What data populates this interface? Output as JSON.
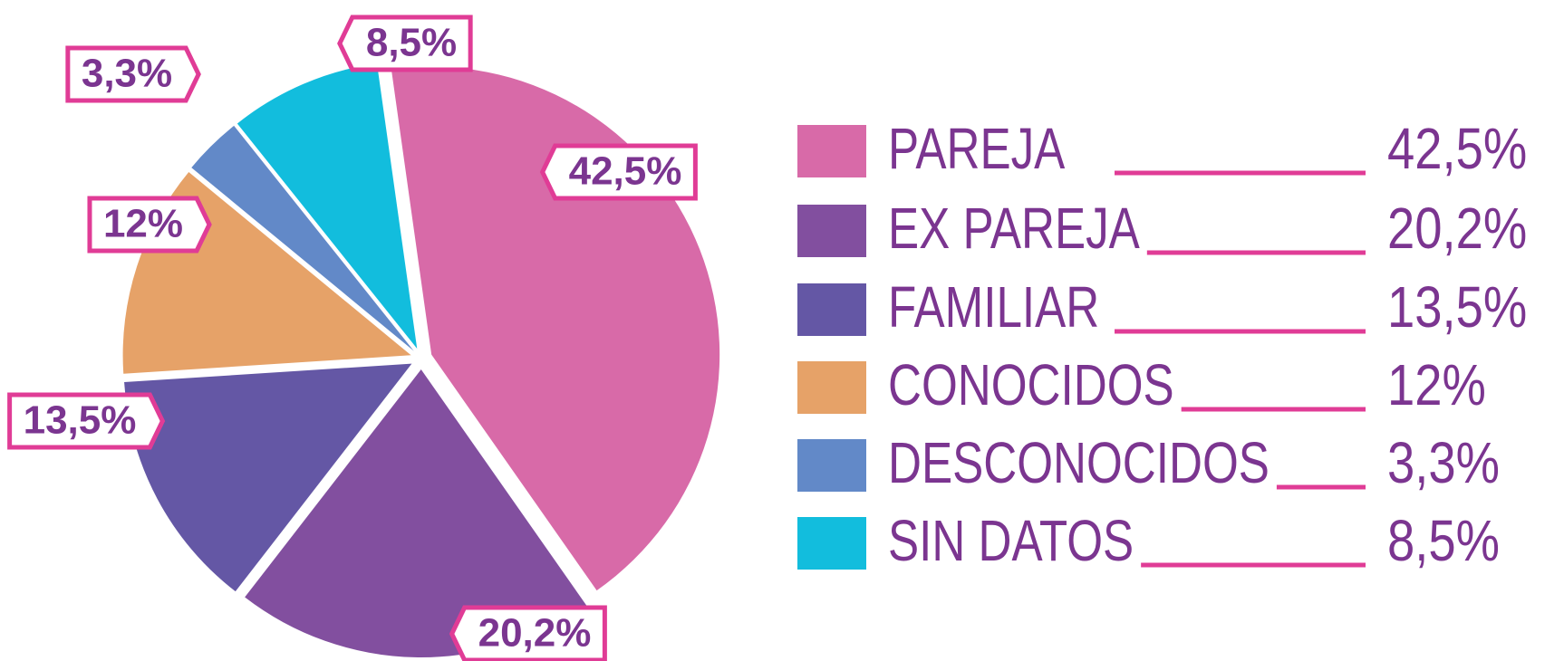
{
  "chart_data": {
    "type": "pie",
    "categories": [
      "PAREJA",
      "EX PAREJA",
      "FAMILIAR",
      "CONOCIDOS",
      "DESCONOCIDOS",
      "SIN DATOS"
    ],
    "values": [
      42.5,
      20.2,
      13.5,
      12,
      3.3,
      8.5
    ],
    "value_labels": [
      "42,5%",
      "20,2%",
      "13,5%",
      "12%",
      "3,3%",
      "8,5%"
    ],
    "colors": [
      "#d86aa8",
      "#824f9f",
      "#6457a5",
      "#e6a268",
      "#6289c8",
      "#12bddd"
    ],
    "legend": "right"
  }
}
